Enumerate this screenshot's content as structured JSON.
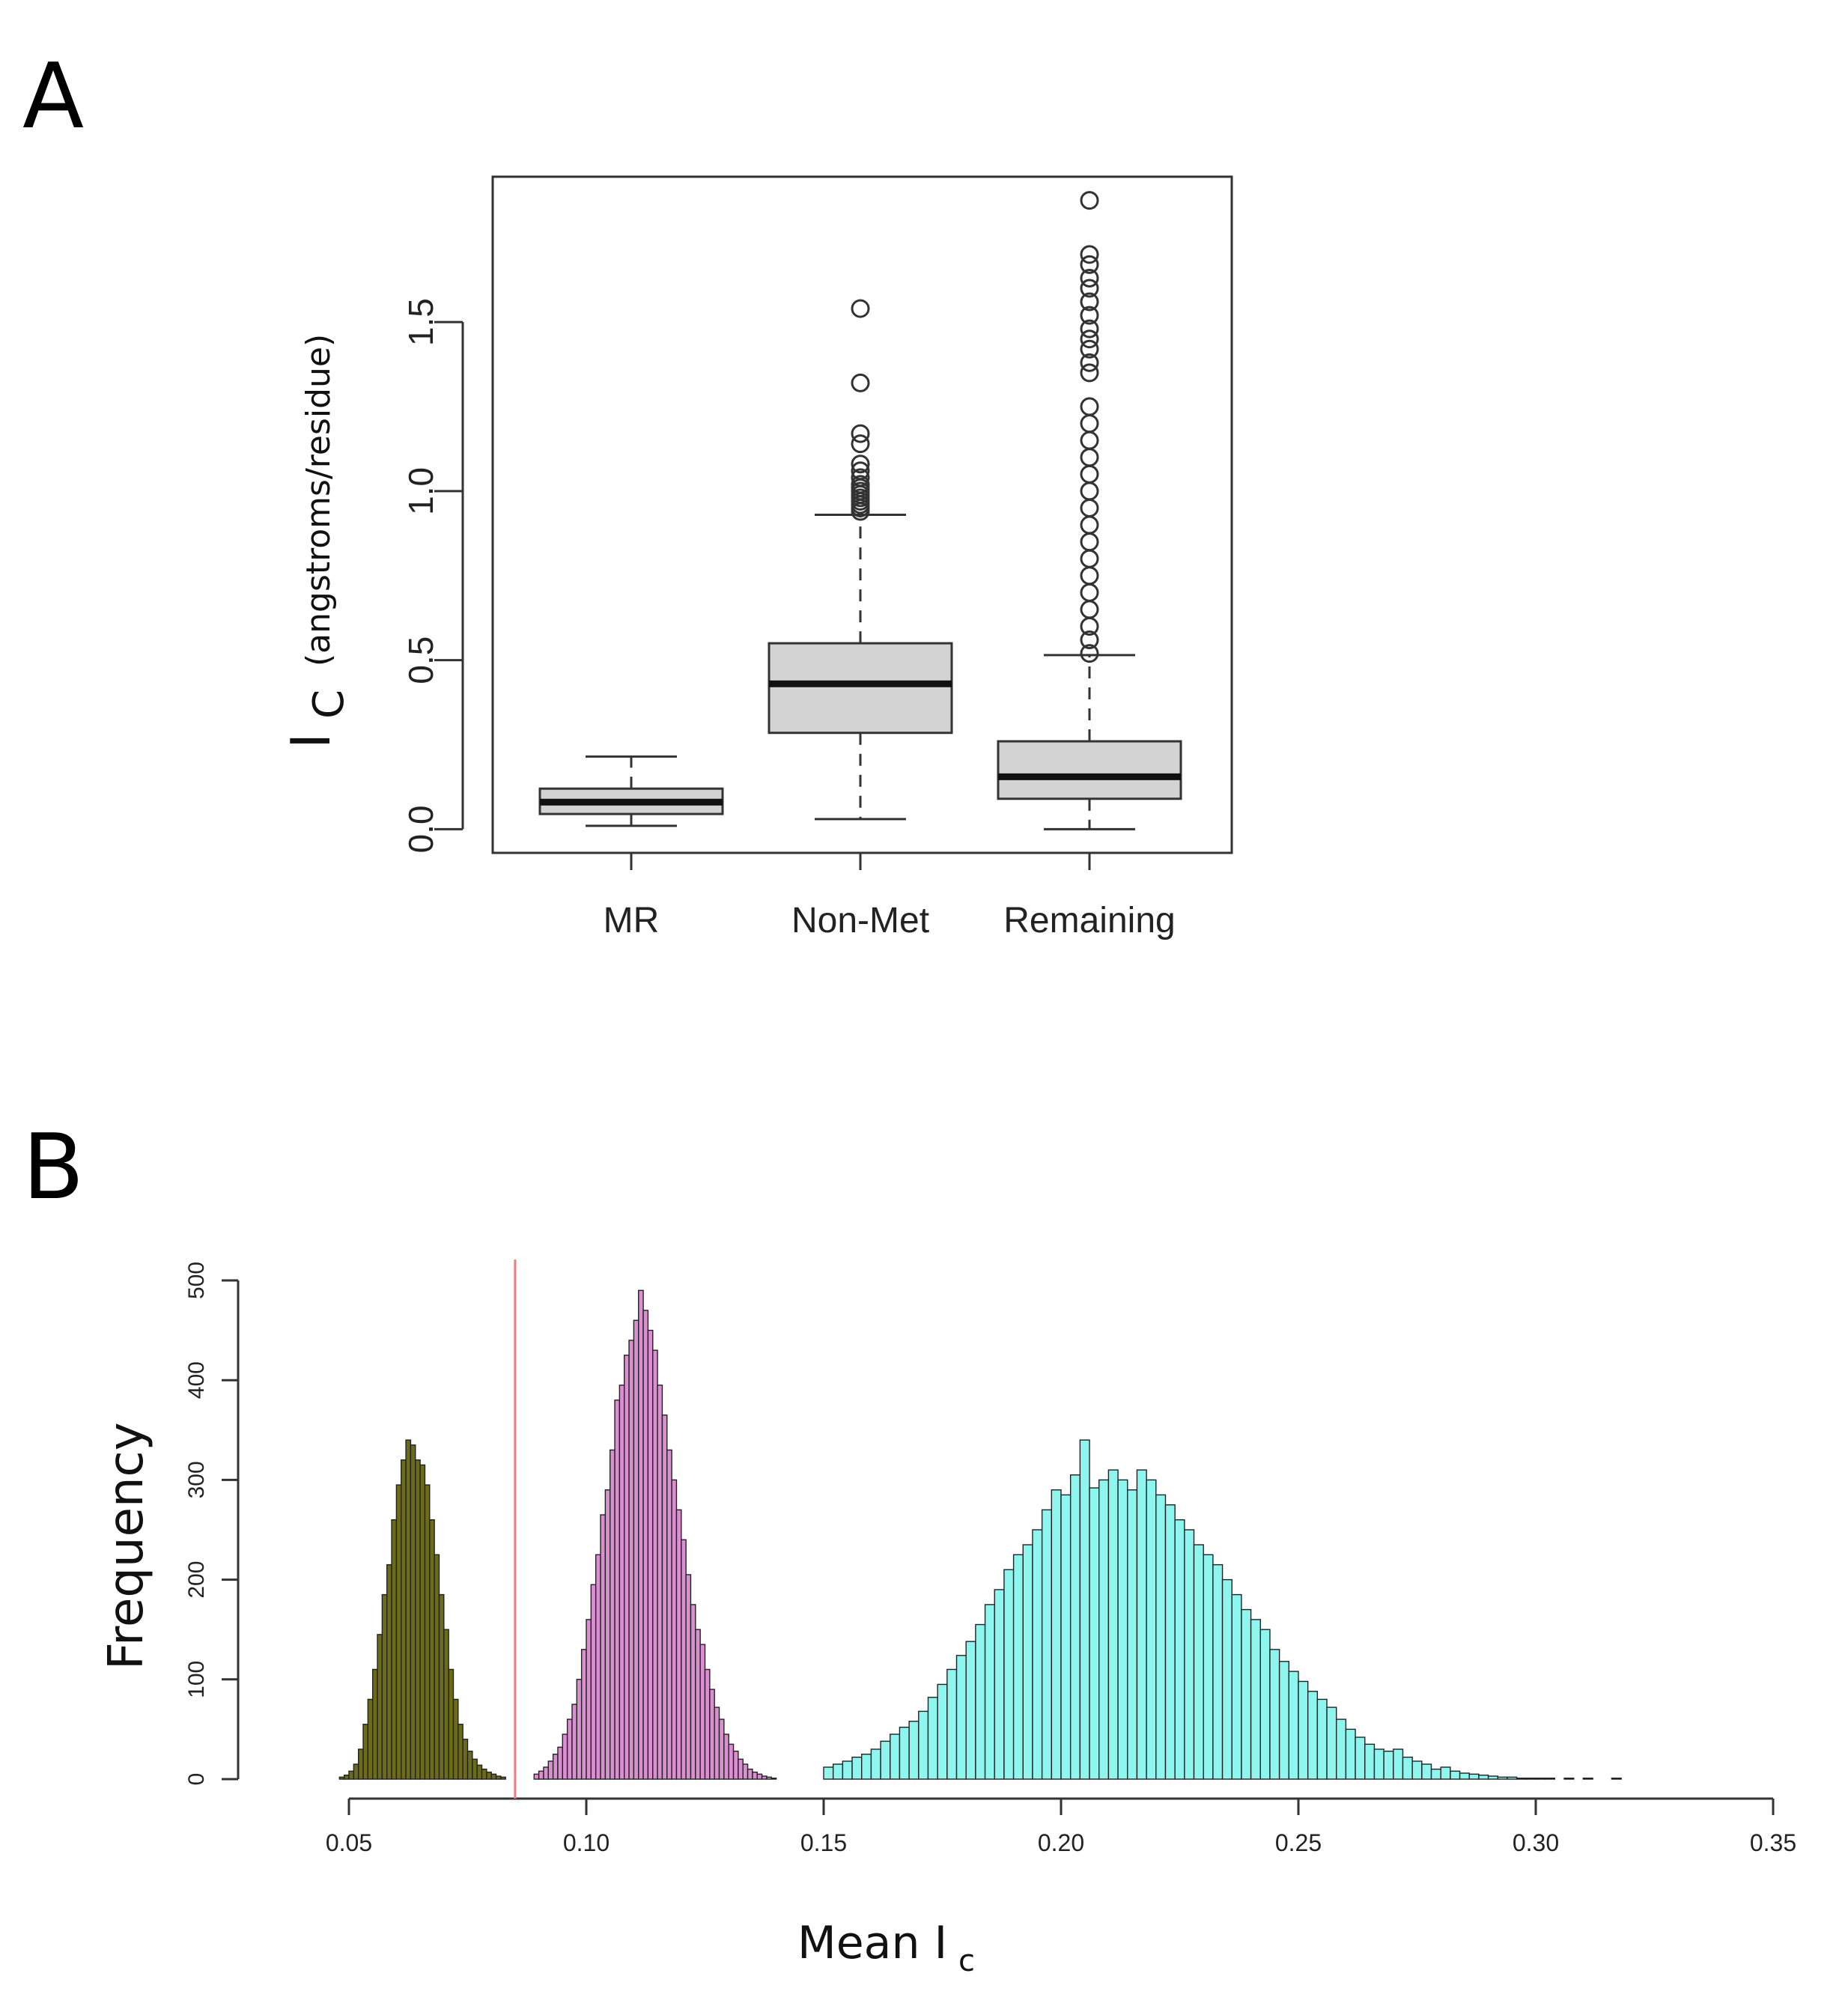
{
  "panels": {
    "a_label": "A",
    "b_label": "B"
  },
  "chart_data": [
    {
      "type": "box",
      "panel": "A",
      "title": "",
      "xlabel": "",
      "ylabel_main": "I",
      "ylabel_sub": "C",
      "ylabel_unit": "(angstroms/residue)",
      "ylim": [
        -0.07,
        1.93
      ],
      "yticks": [
        "0.0",
        "0.5",
        "1.0",
        "1.5"
      ],
      "ytick_values": [
        0,
        0.5,
        1.0,
        1.5
      ],
      "box_fill": "#d3d3d3",
      "grid": false,
      "categories": [
        "MR",
        "Non-Met",
        "Remaining"
      ],
      "boxes": [
        {
          "name": "MR",
          "whisker_low": 0.01,
          "q1": 0.045,
          "median": 0.08,
          "q3": 0.12,
          "whisker_high": 0.215,
          "outliers": []
        },
        {
          "name": "Non-Met",
          "whisker_low": 0.03,
          "q1": 0.285,
          "median": 0.43,
          "q3": 0.55,
          "whisker_high": 0.93,
          "outliers": [
            0.94,
            0.95,
            0.96,
            0.97,
            0.98,
            0.99,
            1.0,
            1.01,
            1.02,
            1.04,
            1.06,
            1.08,
            1.14,
            1.17,
            1.32,
            1.54
          ]
        },
        {
          "name": "Remaining",
          "whisker_low": 0.0,
          "q1": 0.09,
          "median": 0.155,
          "q3": 0.26,
          "whisker_high": 0.515,
          "outliers": [
            0.52,
            0.56,
            0.6,
            0.65,
            0.7,
            0.75,
            0.8,
            0.85,
            0.9,
            0.95,
            1.0,
            1.05,
            1.1,
            1.15,
            1.2,
            1.25,
            1.35,
            1.38,
            1.42,
            1.45,
            1.48,
            1.52,
            1.56,
            1.6,
            1.63,
            1.67,
            1.7,
            1.86
          ]
        }
      ]
    },
    {
      "type": "histogram",
      "panel": "B",
      "title": "",
      "xlabel_main": "Mean I",
      "xlabel_sub": "c",
      "ylabel": "Frequency",
      "xlim": [
        0.05,
        0.35
      ],
      "ylim": [
        0,
        500
      ],
      "xticks": [
        "0.05",
        "0.10",
        "0.15",
        "0.20",
        "0.25",
        "0.30",
        "0.35"
      ],
      "xtick_values": [
        0.05,
        0.1,
        0.15,
        0.2,
        0.25,
        0.3,
        0.35
      ],
      "yticks": [
        "0",
        "100",
        "200",
        "300",
        "400",
        "500"
      ],
      "ytick_values": [
        0,
        100,
        200,
        300,
        400,
        500
      ],
      "vline": {
        "x": 0.085,
        "color": "#f08080"
      },
      "series": [
        {
          "color": "#6b6b1a",
          "bins": {
            "start": 0.048,
            "width": 0.001,
            "counts": [
              2,
              4,
              8,
              15,
              30,
              55,
              80,
              110,
              145,
              185,
              215,
              260,
              295,
              320,
              340,
              335,
              320,
              315,
              295,
              260,
              225,
              185,
              150,
              110,
              80,
              55,
              40,
              28,
              20,
              14,
              10,
              7,
              5,
              3,
              2
            ]
          }
        },
        {
          "color": "#d98fd0",
          "bins": {
            "start": 0.089,
            "width": 0.001,
            "counts": [
              5,
              8,
              12,
              18,
              25,
              32,
              45,
              60,
              75,
              100,
              130,
              160,
              195,
              225,
              265,
              290,
              330,
              380,
              395,
              425,
              440,
              460,
              490,
              470,
              450,
              430,
              395,
              365,
              330,
              300,
              270,
              240,
              205,
              175,
              150,
              135,
              110,
              90,
              72,
              60,
              45,
              35,
              28,
              20,
              15,
              10,
              7,
              5,
              3,
              2,
              1
            ]
          }
        },
        {
          "color": "#8ff5ef",
          "bins": {
            "start": 0.15,
            "width": 0.002,
            "counts": [
              12,
              15,
              18,
              22,
              25,
              30,
              38,
              45,
              52,
              58,
              68,
              82,
              95,
              110,
              124,
              138,
              155,
              175,
              190,
              210,
              225,
              235,
              250,
              270,
              290,
              285,
              305,
              340,
              292,
              300,
              310,
              300,
              290,
              310,
              300,
              285,
              275,
              260,
              250,
              235,
              225,
              215,
              200,
              185,
              170,
              160,
              150,
              130,
              118,
              108,
              98,
              88,
              80,
              72,
              60,
              50,
              42,
              35,
              30,
              28,
              30,
              22,
              18,
              15,
              10,
              12,
              8,
              6,
              5,
              4,
              3,
              2,
              2,
              1,
              1,
              1,
              1,
              0,
              1,
              0,
              1,
              0,
              0,
              1,
              0,
              0,
              0,
              0,
              0,
              0,
              0,
              0,
              0,
              0,
              0,
              0,
              0,
              0
            ]
          }
        }
      ]
    }
  ]
}
